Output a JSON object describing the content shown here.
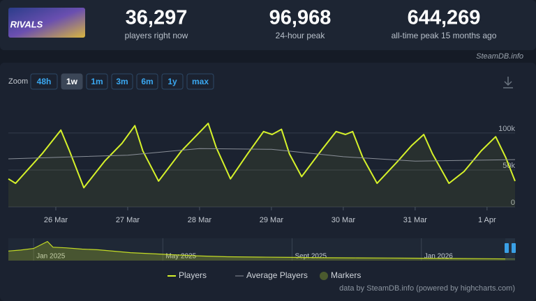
{
  "header": {
    "logo": "RIVALS",
    "stats": [
      {
        "value": "36,297",
        "label": "players right now"
      },
      {
        "value": "96,968",
        "label": "24-hour peak"
      },
      {
        "value": "644,269",
        "label": "all-time peak 15 months ago"
      }
    ]
  },
  "watermark": "SteamDB.info",
  "zoom": {
    "label": "Zoom",
    "buttons": [
      "48h",
      "1w",
      "1m",
      "3m",
      "6m",
      "1y",
      "max"
    ],
    "active": 1
  },
  "chart_data": [
    {
      "type": "line",
      "xlim": [
        -0.66,
        6.39
      ],
      "ylim": [
        0,
        148000
      ],
      "xticks": [
        {
          "value": 0,
          "label": "26 Mar"
        },
        {
          "value": 1,
          "label": "27 Mar"
        },
        {
          "value": 2,
          "label": "28 Mar"
        },
        {
          "value": 3,
          "label": "29 Mar"
        },
        {
          "value": 4,
          "label": "30 Mar"
        },
        {
          "value": 5,
          "label": "31 Mar"
        },
        {
          "value": 6,
          "label": "1 Apr"
        }
      ],
      "yticks": [
        0,
        {
          "value": 50000,
          "label": "50k"
        },
        {
          "value": 100000,
          "label": "100k"
        }
      ],
      "grid": true,
      "series": [
        {
          "name": "Players",
          "color": "#d6f22a",
          "area": true,
          "x": [
            -0.66,
            -0.56,
            -0.19,
            0.07,
            0.19,
            0.39,
            0.68,
            0.92,
            1.1,
            1.21,
            1.43,
            1.75,
            2.12,
            2.23,
            2.43,
            2.67,
            2.89,
            3.01,
            3.14,
            3.25,
            3.42,
            3.69,
            3.9,
            4.03,
            4.13,
            4.27,
            4.47,
            4.76,
            4.95,
            5.12,
            5.24,
            5.47,
            5.68,
            5.92,
            6.12,
            6.26,
            6.39
          ],
          "values": [
            38000,
            32000,
            72000,
            104000,
            76000,
            26000,
            62000,
            86000,
            110000,
            76000,
            35000,
            76000,
            113000,
            81000,
            38000,
            72000,
            102000,
            98000,
            105000,
            72000,
            41000,
            76000,
            102000,
            98000,
            102000,
            67000,
            32000,
            62000,
            83000,
            98000,
            72000,
            32000,
            48000,
            76000,
            95000,
            67000,
            35000
          ]
        },
        {
          "name": "Average Players",
          "color": "#8a8f98",
          "x": [
            -0.66,
            1.0,
            2.0,
            3.0,
            4.0,
            5.0,
            6.39
          ],
          "values": [
            65000,
            70000,
            79000,
            78000,
            68000,
            62000,
            64000
          ]
        }
      ],
      "markers": {
        "name": "Markers",
        "color": "#4b5a2e"
      }
    },
    {
      "type": "area",
      "xlim": [
        0.22,
        15.9
      ],
      "ylim": [
        0,
        700000
      ],
      "xticks": [
        {
          "value": 1,
          "label": "Jan 2025"
        },
        {
          "value": 5,
          "label": "May 2025"
        },
        {
          "value": 9,
          "label": "Sept 2025"
        },
        {
          "value": 13,
          "label": "Jan 2026"
        }
      ],
      "series": [
        {
          "color": "#c4dc25",
          "x": [
            0.22,
            0.6,
            1.0,
            1.43,
            1.6,
            2,
            2.5,
            3,
            4,
            5,
            6,
            7,
            8,
            9,
            10,
            11,
            12,
            13,
            14,
            15,
            15.9
          ],
          "values": [
            300000,
            330000,
            380000,
            600000,
            420000,
            400000,
            360000,
            340000,
            250000,
            200000,
            150000,
            120000,
            110000,
            100000,
            90000,
            85000,
            80000,
            75000,
            65000,
            60000,
            50000
          ]
        }
      ]
    }
  ],
  "credits": "data by SteamDB.info (powered by highcharts.com)"
}
